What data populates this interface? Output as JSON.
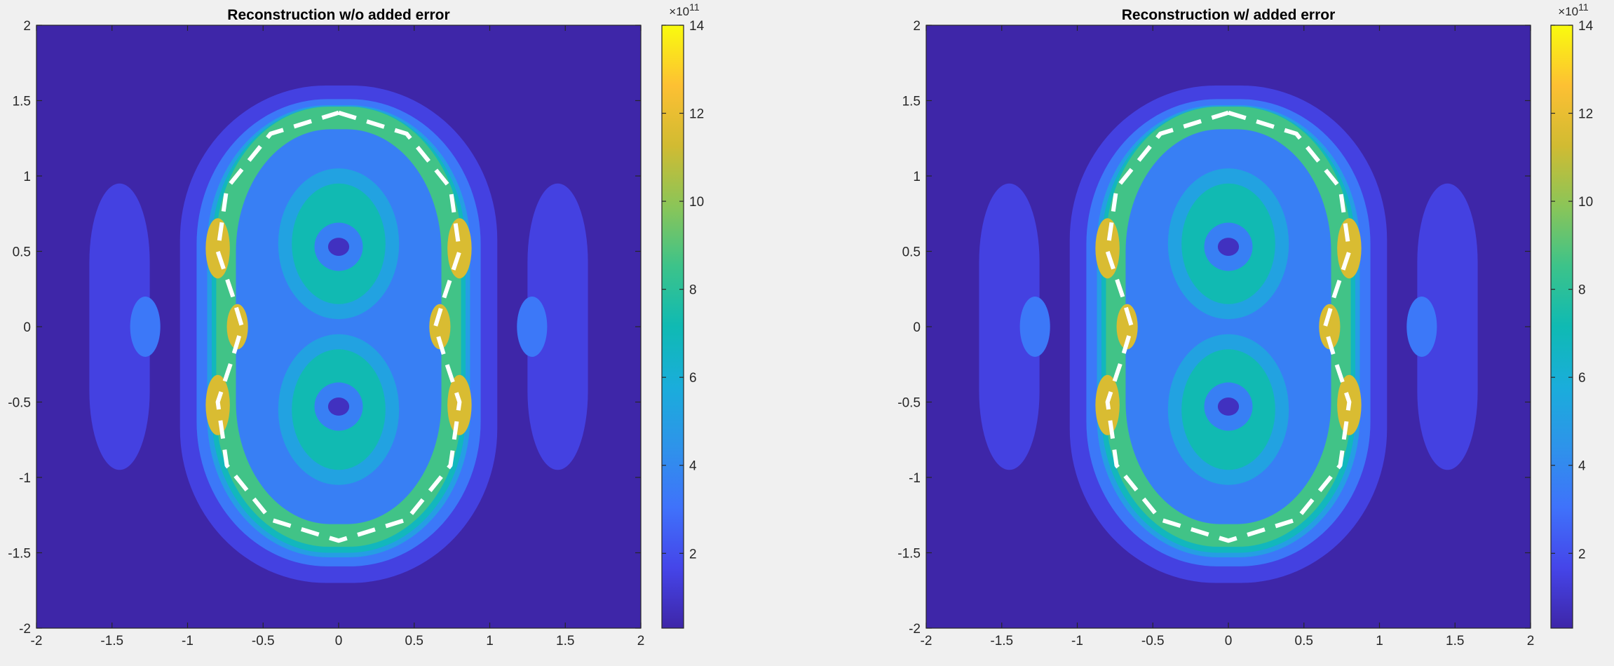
{
  "chart_data": [
    {
      "type": "heatmap",
      "subtype": "filled-contour",
      "title": "Reconstruction w/o added error",
      "xlabel": "",
      "ylabel": "",
      "xlim": [
        -2,
        2
      ],
      "ylim": [
        -2,
        2
      ],
      "x_ticks": [
        -2,
        -1.5,
        -1,
        -0.5,
        0,
        0.5,
        1,
        1.5,
        2
      ],
      "y_ticks": [
        -2,
        -1.5,
        -1,
        -0.5,
        0,
        0.5,
        1,
        1.5,
        2
      ],
      "x_tick_labels": [
        "-2",
        "-1.5",
        "-1",
        "-0.5",
        "0",
        "0.5",
        "1",
        "1.5",
        "2"
      ],
      "y_tick_labels": [
        "-2",
        "-1.5",
        "-1",
        "-0.5",
        "0",
        "0.5",
        "1",
        "1.5",
        "2"
      ],
      "colorbar": {
        "multiplier": "×10",
        "exponent": "11",
        "clim": [
          0.3,
          14
        ],
        "ticks": [
          2,
          4,
          6,
          8,
          10,
          12,
          14
        ],
        "tick_labels": [
          "2",
          "4",
          "6",
          "8",
          "10",
          "12",
          "14"
        ],
        "colormap": "parula"
      },
      "overlay": {
        "style": "white dashed",
        "x": [
          0,
          0.45,
          0.74,
          0.8,
          0.7,
          0.64,
          0.7,
          0.8,
          0.74,
          0.45,
          0,
          -0.45,
          -0.74,
          -0.8,
          -0.7,
          -0.64,
          -0.7,
          -0.8,
          -0.74,
          -0.45,
          0
        ],
        "y": [
          1.42,
          1.28,
          0.92,
          0.5,
          0.2,
          0,
          -0.2,
          -0.5,
          -0.92,
          -1.28,
          -1.42,
          -1.28,
          -0.92,
          -0.5,
          -0.2,
          0,
          0.2,
          0.5,
          0.92,
          1.28,
          1.42
        ]
      },
      "levels": [
        {
          "level": 1.5,
          "shape": "rounded blob",
          "center": [
            0,
            -0.05
          ],
          "half_width": 1.05,
          "half_height": 1.65
        },
        {
          "level": 1.5,
          "shape": "side lobe",
          "center": [
            -1.45,
            0
          ],
          "half_width": 0.2,
          "half_height": 0.95
        },
        {
          "level": 1.5,
          "shape": "side lobe",
          "center": [
            1.45,
            0
          ],
          "half_width": 0.2,
          "half_height": 0.95
        },
        {
          "level": 3.3,
          "shape": "rounded blob",
          "center": [
            0,
            -0.04
          ],
          "half_width": 0.94,
          "half_height": 1.55
        },
        {
          "level": 3.3,
          "shape": "ellipse",
          "center": [
            -1.28,
            0
          ],
          "half_width": 0.1,
          "half_height": 0.2
        },
        {
          "level": 3.3,
          "shape": "ellipse",
          "center": [
            1.28,
            0
          ],
          "half_width": 0.1,
          "half_height": 0.2
        },
        {
          "level": 5.0,
          "shape": "rounded blob",
          "center": [
            0,
            -0.03
          ],
          "half_width": 0.87,
          "half_height": 1.5
        },
        {
          "level": 6.8,
          "shape": "rounded blob",
          "center": [
            0,
            -0.02
          ],
          "half_width": 0.84,
          "half_height": 1.48
        },
        {
          "level": 8.6,
          "shape": "ring",
          "center": [
            0,
            0
          ],
          "half_width": 0.81,
          "half_height": 1.46
        },
        {
          "level": 3.6,
          "shape": "ring interior",
          "center": [
            0,
            0
          ],
          "half_width": 0.68,
          "half_height": 1.31
        },
        {
          "level": 5.2,
          "shape": "ellipse",
          "center": [
            0,
            0.55
          ],
          "half_width": 0.4,
          "half_height": 0.5
        },
        {
          "level": 5.2,
          "shape": "ellipse",
          "center": [
            0,
            -0.55
          ],
          "half_width": 0.4,
          "half_height": 0.5
        },
        {
          "level": 7.2,
          "shape": "ellipse",
          "center": [
            0,
            0.55
          ],
          "half_width": 0.31,
          "half_height": 0.4
        },
        {
          "level": 7.2,
          "shape": "ellipse",
          "center": [
            0,
            -0.55
          ],
          "half_width": 0.31,
          "half_height": 0.4
        },
        {
          "level": 3.6,
          "shape": "ellipse",
          "center": [
            0,
            0.53
          ],
          "half_width": 0.16,
          "half_height": 0.16
        },
        {
          "level": 3.6,
          "shape": "ellipse",
          "center": [
            0,
            -0.53
          ],
          "half_width": 0.16,
          "half_height": 0.16
        },
        {
          "level": 0.8,
          "shape": "ellipse",
          "center": [
            0,
            0.53
          ],
          "half_width": 0.07,
          "half_height": 0.06
        },
        {
          "level": 0.8,
          "shape": "ellipse",
          "center": [
            0,
            -0.53
          ],
          "half_width": 0.07,
          "half_height": 0.06
        },
        {
          "level": 11.5,
          "shape": "ellipse",
          "center": [
            -0.8,
            0.52
          ],
          "half_width": 0.08,
          "half_height": 0.2
        },
        {
          "level": 11.5,
          "shape": "ellipse",
          "center": [
            0.8,
            0.52
          ],
          "half_width": 0.08,
          "half_height": 0.2
        },
        {
          "level": 11.5,
          "shape": "ellipse",
          "center": [
            -0.8,
            -0.52
          ],
          "half_width": 0.08,
          "half_height": 0.2
        },
        {
          "level": 11.5,
          "shape": "ellipse",
          "center": [
            0.8,
            -0.52
          ],
          "half_width": 0.08,
          "half_height": 0.2
        },
        {
          "level": 11.5,
          "shape": "ellipse",
          "center": [
            -0.67,
            0
          ],
          "half_width": 0.07,
          "half_height": 0.15
        },
        {
          "level": 11.5,
          "shape": "ellipse",
          "center": [
            0.67,
            0
          ],
          "half_width": 0.07,
          "half_height": 0.15
        }
      ]
    },
    {
      "type": "heatmap",
      "subtype": "filled-contour",
      "title": "Reconstruction w/ added error",
      "xlabel": "",
      "ylabel": "",
      "xlim": [
        -2,
        2
      ],
      "ylim": [
        -2,
        2
      ],
      "x_ticks": [
        -2,
        -1.5,
        -1,
        -0.5,
        0,
        0.5,
        1,
        1.5,
        2
      ],
      "y_ticks": [
        -2,
        -1.5,
        -1,
        -0.5,
        0,
        0.5,
        1,
        1.5,
        2
      ],
      "x_tick_labels": [
        "-2",
        "-1.5",
        "-1",
        "-0.5",
        "0",
        "0.5",
        "1",
        "1.5",
        "2"
      ],
      "y_tick_labels": [
        "-2",
        "-1.5",
        "-1",
        "-0.5",
        "0",
        "0.5",
        "1",
        "1.5",
        "2"
      ],
      "colorbar": {
        "multiplier": "×10",
        "exponent": "11",
        "clim": [
          0.3,
          14
        ],
        "ticks": [
          2,
          4,
          6,
          8,
          10,
          12,
          14
        ],
        "tick_labels": [
          "2",
          "4",
          "6",
          "8",
          "10",
          "12",
          "14"
        ],
        "colormap": "parula"
      },
      "overlay": {
        "style": "white dashed",
        "x": [
          0,
          0.45,
          0.74,
          0.8,
          0.7,
          0.64,
          0.7,
          0.8,
          0.74,
          0.45,
          0,
          -0.45,
          -0.74,
          -0.8,
          -0.7,
          -0.64,
          -0.7,
          -0.8,
          -0.74,
          -0.45,
          0
        ],
        "y": [
          1.42,
          1.28,
          0.92,
          0.5,
          0.2,
          0,
          -0.2,
          -0.5,
          -0.92,
          -1.28,
          -1.42,
          -1.28,
          -0.92,
          -0.5,
          -0.2,
          0,
          0.2,
          0.5,
          0.92,
          1.28,
          1.42
        ]
      },
      "levels": [
        {
          "level": 1.5,
          "shape": "rounded blob",
          "center": [
            0,
            -0.05
          ],
          "half_width": 1.05,
          "half_height": 1.65
        },
        {
          "level": 1.5,
          "shape": "side lobe",
          "center": [
            -1.45,
            0
          ],
          "half_width": 0.2,
          "half_height": 0.95
        },
        {
          "level": 1.5,
          "shape": "side lobe",
          "center": [
            1.45,
            0
          ],
          "half_width": 0.2,
          "half_height": 0.95
        },
        {
          "level": 3.3,
          "shape": "rounded blob",
          "center": [
            0,
            -0.04
          ],
          "half_width": 0.94,
          "half_height": 1.55
        },
        {
          "level": 3.3,
          "shape": "ellipse",
          "center": [
            -1.28,
            0
          ],
          "half_width": 0.1,
          "half_height": 0.2
        },
        {
          "level": 3.3,
          "shape": "ellipse",
          "center": [
            1.28,
            0
          ],
          "half_width": 0.1,
          "half_height": 0.2
        },
        {
          "level": 5.0,
          "shape": "rounded blob",
          "center": [
            0,
            -0.03
          ],
          "half_width": 0.87,
          "half_height": 1.5
        },
        {
          "level": 6.8,
          "shape": "rounded blob",
          "center": [
            0,
            -0.02
          ],
          "half_width": 0.84,
          "half_height": 1.48
        },
        {
          "level": 8.6,
          "shape": "ring",
          "center": [
            0,
            0
          ],
          "half_width": 0.81,
          "half_height": 1.46
        },
        {
          "level": 3.6,
          "shape": "ring interior",
          "center": [
            0,
            0
          ],
          "half_width": 0.68,
          "half_height": 1.31
        },
        {
          "level": 5.2,
          "shape": "ellipse",
          "center": [
            0,
            0.55
          ],
          "half_width": 0.4,
          "half_height": 0.5
        },
        {
          "level": 5.2,
          "shape": "ellipse",
          "center": [
            0,
            -0.55
          ],
          "half_width": 0.4,
          "half_height": 0.5
        },
        {
          "level": 7.2,
          "shape": "ellipse",
          "center": [
            0,
            0.55
          ],
          "half_width": 0.31,
          "half_height": 0.4
        },
        {
          "level": 7.2,
          "shape": "ellipse",
          "center": [
            0,
            -0.55
          ],
          "half_width": 0.31,
          "half_height": 0.4
        },
        {
          "level": 3.6,
          "shape": "ellipse",
          "center": [
            0,
            0.53
          ],
          "half_width": 0.16,
          "half_height": 0.16
        },
        {
          "level": 3.6,
          "shape": "ellipse",
          "center": [
            0,
            -0.53
          ],
          "half_width": 0.16,
          "half_height": 0.16
        },
        {
          "level": 0.8,
          "shape": "ellipse",
          "center": [
            0,
            0.53
          ],
          "half_width": 0.07,
          "half_height": 0.06
        },
        {
          "level": 0.8,
          "shape": "ellipse",
          "center": [
            0,
            -0.53
          ],
          "half_width": 0.07,
          "half_height": 0.06
        },
        {
          "level": 11.5,
          "shape": "ellipse",
          "center": [
            -0.8,
            0.52
          ],
          "half_width": 0.08,
          "half_height": 0.2
        },
        {
          "level": 11.5,
          "shape": "ellipse",
          "center": [
            0.8,
            0.52
          ],
          "half_width": 0.08,
          "half_height": 0.2
        },
        {
          "level": 11.5,
          "shape": "ellipse",
          "center": [
            -0.8,
            -0.52
          ],
          "half_width": 0.08,
          "half_height": 0.2
        },
        {
          "level": 11.5,
          "shape": "ellipse",
          "center": [
            0.8,
            -0.52
          ],
          "half_width": 0.08,
          "half_height": 0.2
        },
        {
          "level": 11.5,
          "shape": "ellipse",
          "center": [
            -0.67,
            0
          ],
          "half_width": 0.07,
          "half_height": 0.15
        },
        {
          "level": 11.5,
          "shape": "ellipse",
          "center": [
            0.67,
            0
          ],
          "half_width": 0.07,
          "half_height": 0.15
        }
      ]
    }
  ]
}
